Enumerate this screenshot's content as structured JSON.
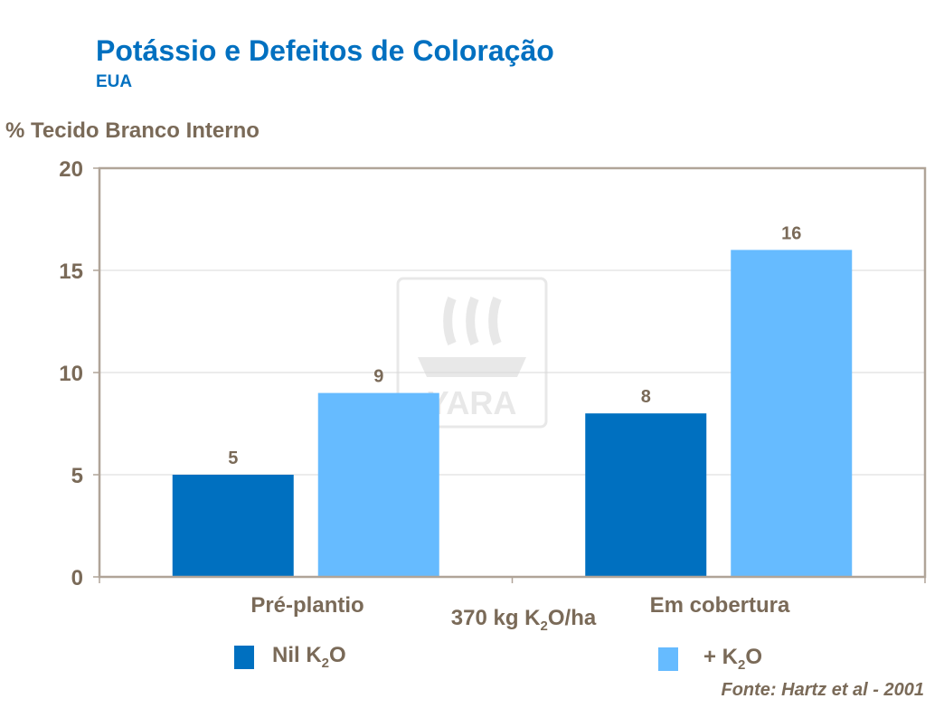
{
  "title": "Potássio e Defeitos de Coloração",
  "subtitle": "EUA",
  "watermark_logo": "YARA",
  "colors": {
    "title": "#0070c0",
    "nil": "#0070c0",
    "plus": "#66bbff",
    "text": "#7a6a58",
    "axis": "#b0a498",
    "grid": "#d9d9d9"
  },
  "x_center_label": {
    "pre": "370 kg K",
    "sub": "2",
    "post": "O/ha"
  },
  "legend": [
    {
      "pre": "Nil K",
      "sub": "2",
      "post": "O"
    },
    {
      "pre": "+ K",
      "sub": "2",
      "post": "O"
    }
  ],
  "source": "Fonte: Hartz et al - 2001",
  "chart_data": {
    "type": "bar",
    "title": "Potássio e Defeitos de Coloração",
    "ylabel": "% Tecido Branco Interno",
    "xlabel": "370 kg K2O/ha",
    "categories": [
      "Pré-plantio",
      "Em cobertura"
    ],
    "series": [
      {
        "name": "Nil K2O",
        "values": [
          5,
          8
        ]
      },
      {
        "name": "+ K2O",
        "values": [
          9,
          16
        ]
      }
    ],
    "ylim": [
      0,
      20
    ],
    "yticks": [
      "0",
      "5",
      "10",
      "15",
      "20"
    ],
    "grid": true,
    "legend_position": "bottom",
    "data_labels": true
  }
}
